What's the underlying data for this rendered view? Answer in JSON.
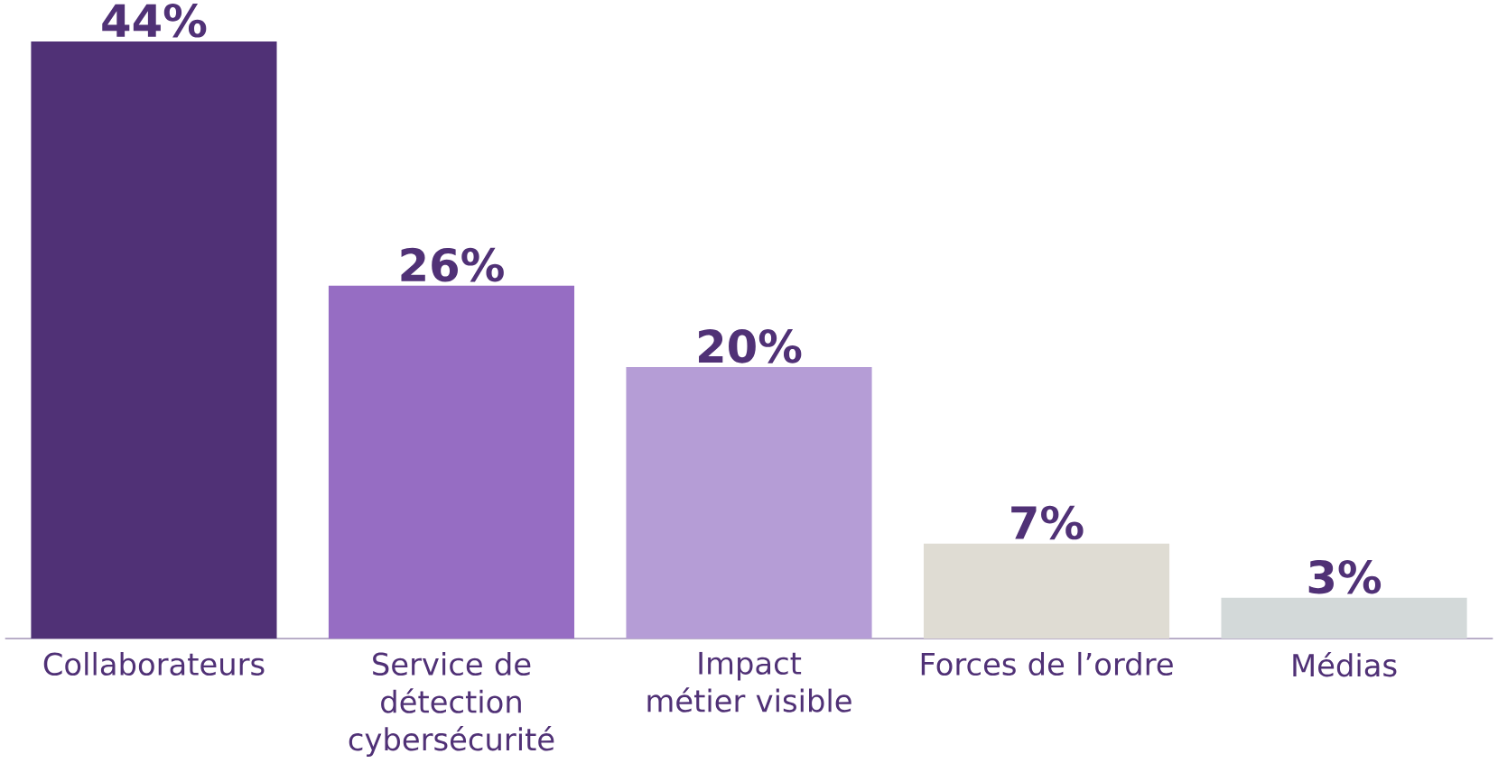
{
  "chart_data": {
    "type": "bar",
    "categories": [
      "Collaborateurs",
      "Service de détection cybersécurité",
      "Impact métier visible",
      "Forces de l’ordre",
      "Médias"
    ],
    "values": [
      44,
      26,
      20,
      7,
      3
    ],
    "value_labels": [
      "44%",
      "26%",
      "20%",
      "7%",
      "3%"
    ],
    "colors": [
      "#503176",
      "#966dc3",
      "#b59dd6",
      "#dfdcd3",
      "#d3d9d9"
    ]
  }
}
